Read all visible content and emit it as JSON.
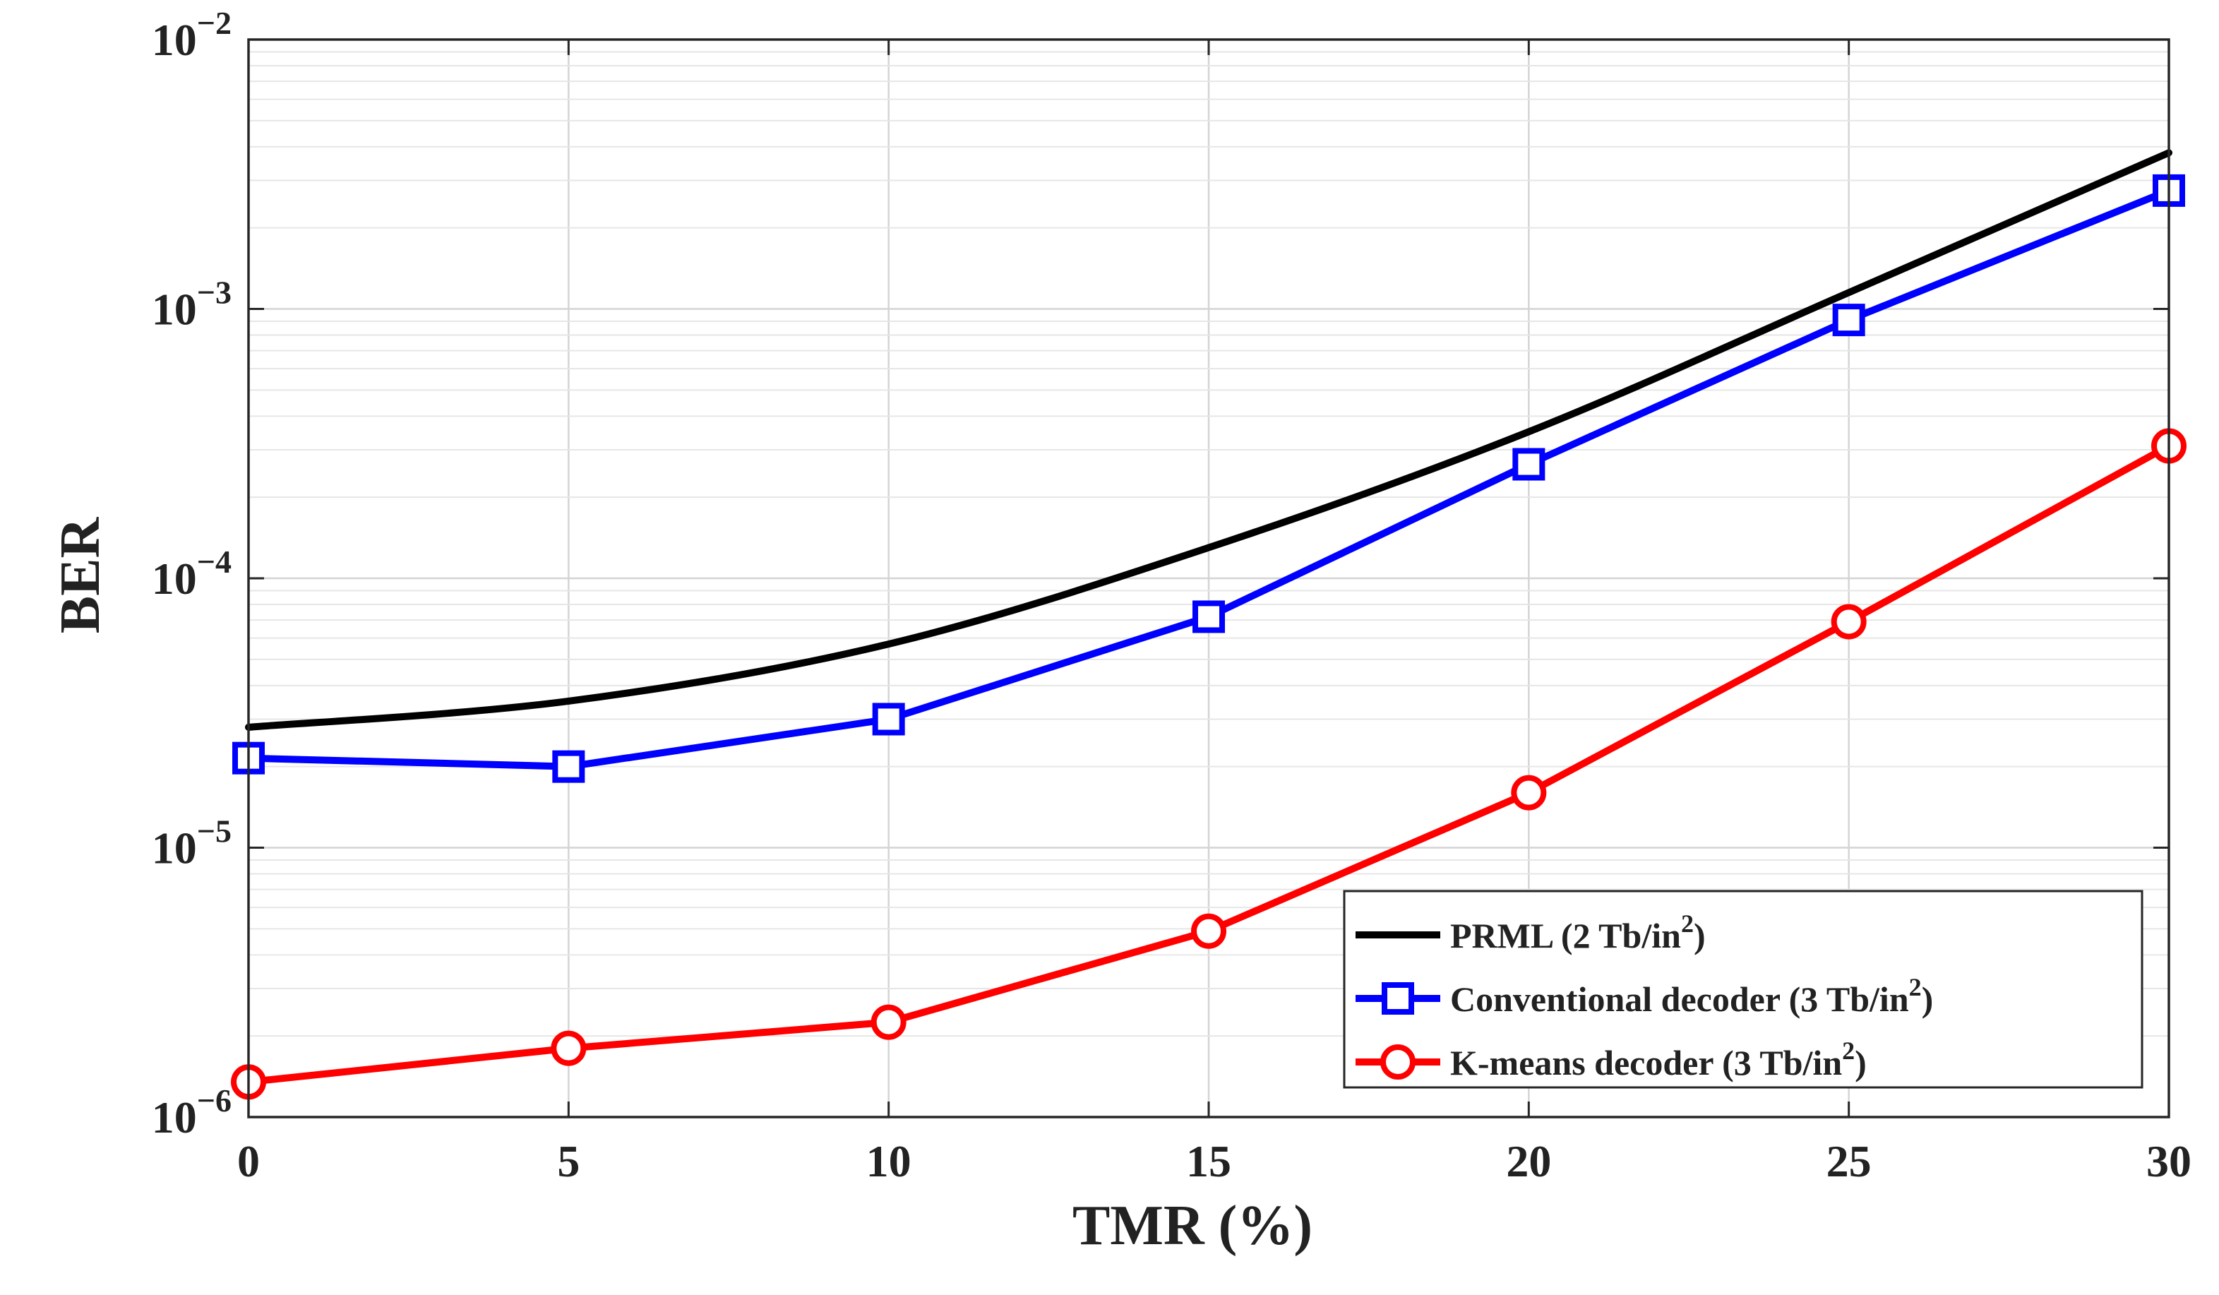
{
  "chart_data": {
    "type": "line",
    "title": "",
    "xlabel": "TMR (%)",
    "ylabel": "BER",
    "xlim": [
      0,
      30
    ],
    "ylim": [
      1e-06,
      0.01
    ],
    "yscale": "log",
    "grid": true,
    "x_ticks": [
      {
        "value": 0,
        "label": "0"
      },
      {
        "value": 5,
        "label": "5"
      },
      {
        "value": 10,
        "label": "10"
      },
      {
        "value": 15,
        "label": "15"
      },
      {
        "value": 20,
        "label": "20"
      },
      {
        "value": 25,
        "label": "25"
      },
      {
        "value": 30,
        "label": "30"
      }
    ],
    "y_ticks": [
      {
        "value": 0.01,
        "base": "10",
        "exp": "−2"
      },
      {
        "value": 0.001,
        "base": "10",
        "exp": "−3"
      },
      {
        "value": 0.0001,
        "base": "10",
        "exp": "−4"
      },
      {
        "value": 1e-05,
        "base": "10",
        "exp": "−5"
      },
      {
        "value": 1e-06,
        "base": "10",
        "exp": "−6"
      }
    ],
    "legend_position": "bottom-right",
    "series": [
      {
        "name": "PRML (2 Tb/in²)",
        "legend_text": "PRML (2 Tb/in",
        "legend_sup": "2",
        "legend_tail": ")",
        "color": "#000000",
        "marker": "none",
        "smooth": true,
        "x": [
          0,
          5,
          10,
          15,
          20,
          25,
          30
        ],
        "y": [
          2.8e-05,
          3.5e-05,
          5.7e-05,
          0.00013,
          0.00035,
          0.00115,
          0.0038
        ]
      },
      {
        "name": "Conventional decoder (3 Tb/in²)",
        "legend_text": "Conventional decoder (3 Tb/in",
        "legend_sup": "2",
        "legend_tail": ")",
        "color": "#0000ff",
        "marker": "square",
        "smooth": false,
        "x": [
          0,
          5,
          10,
          15,
          20,
          25,
          30
        ],
        "y": [
          2.15e-05,
          2e-05,
          3e-05,
          7.2e-05,
          0.000265,
          0.00091,
          0.00275
        ]
      },
      {
        "name": "K-means decoder (3 Tb/in²)",
        "legend_text": "K-means decoder (3 Tb/in",
        "legend_sup": "2",
        "legend_tail": ")",
        "color": "#ff0000",
        "marker": "circle",
        "smooth": false,
        "x": [
          0,
          5,
          10,
          15,
          20,
          25,
          30
        ],
        "y": [
          1.35e-06,
          1.8e-06,
          2.25e-06,
          4.9e-06,
          1.6e-05,
          6.9e-05,
          0.00031
        ]
      }
    ]
  }
}
